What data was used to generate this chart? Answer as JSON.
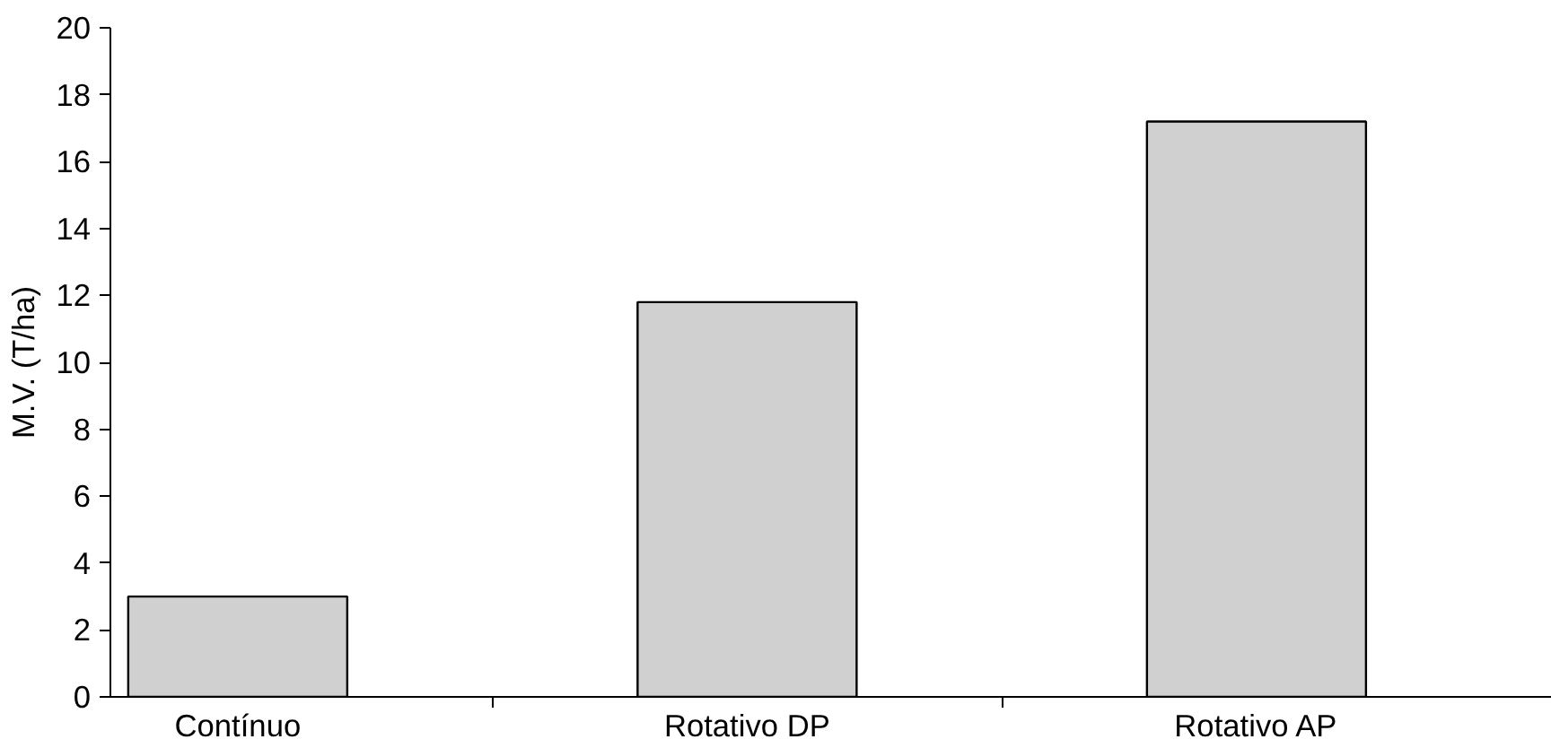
{
  "chart_data": {
    "type": "bar",
    "ylabel": "M.V. (T/ha)",
    "categories": [
      "Contínuo",
      "Rotativo DP",
      "Rotativo AP"
    ],
    "values": [
      3.0,
      11.8,
      17.2
    ],
    "color": "#d0d0d0",
    "ylim": [
      0,
      20
    ],
    "yticks": [
      0,
      2,
      4,
      6,
      8,
      10,
      12,
      14,
      16,
      18,
      20
    ],
    "grid": false
  }
}
